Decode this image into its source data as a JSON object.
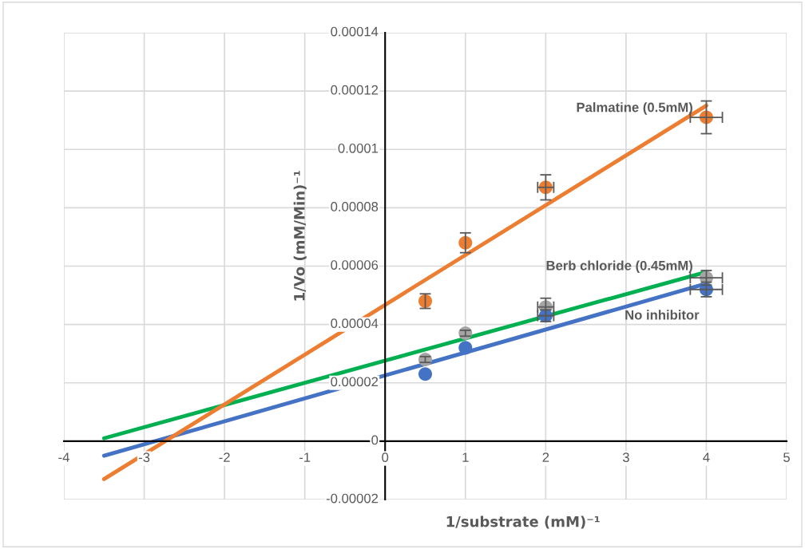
{
  "chart_data": {
    "type": "scatter",
    "xlabel": "1/substrate (mM)⁻¹",
    "ylabel": "1/Vo (mM/Min)⁻¹",
    "xlim": [
      -4,
      5
    ],
    "xticks": [
      -4,
      -3,
      -2,
      -1,
      0,
      1,
      2,
      3,
      4,
      5
    ],
    "ylim": [
      -2e-05,
      0.00014
    ],
    "yticks": [
      {
        "value": -2e-05,
        "label": "-0.00002"
      },
      {
        "value": 0,
        "label": "0"
      },
      {
        "value": 2e-05,
        "label": "0.00002"
      },
      {
        "value": 4e-05,
        "label": "0.00004"
      },
      {
        "value": 6e-05,
        "label": "0.00006"
      },
      {
        "value": 8e-05,
        "label": "0.00008"
      },
      {
        "value": 0.0001,
        "label": "0.0001"
      },
      {
        "value": 0.00012,
        "label": "0.00012"
      },
      {
        "value": 0.00014,
        "label": "0.00014"
      }
    ],
    "grid": true,
    "series": [
      {
        "name": "Palmatine (0.5mM)",
        "marker": "circle",
        "color": "#ed7d31",
        "x": [
          0.5,
          1,
          2,
          4
        ],
        "values": [
          4.8e-05,
          6.8e-05,
          8.7e-05,
          0.000111
        ],
        "errors": [
          2.5e-06,
          3.4e-06,
          4.3e-06,
          5.6e-06
        ],
        "xerrors": [
          null,
          null,
          0.1,
          0.2
        ]
      },
      {
        "name": "Berb chloride (0.45mM)",
        "marker": "circle",
        "color": "#a5a5a5",
        "x": [
          0.5,
          1,
          2,
          4
        ],
        "values": [
          2.8e-05,
          3.7e-05,
          4.6e-05,
          5.6e-05
        ],
        "errors": [
          1e-06,
          1e-06,
          3e-06,
          2.5e-06
        ],
        "xerrors": [
          null,
          null,
          0.1,
          0.2
        ]
      },
      {
        "name": "No inhibitor",
        "marker": "circle",
        "color": "#4472c4",
        "x": [
          0.5,
          1,
          2,
          4
        ],
        "values": [
          2.3e-05,
          3.2e-05,
          4.3e-05,
          5.2e-05
        ],
        "errors": [
          null,
          null,
          2e-06,
          2.5e-06
        ],
        "xerrors": [
          null,
          null,
          0.1,
          0.2
        ]
      },
      {
        "type": "line",
        "color": "#00b050",
        "x": [
          -3.5,
          4
        ],
        "values": [
          1e-06,
          5.8e-05
        ]
      },
      {
        "type": "line",
        "color": "#4472c4",
        "x": [
          -3.5,
          4
        ],
        "values": [
          -5e-06,
          5.4e-05
        ]
      },
      {
        "type": "line",
        "color": "#ed7d31",
        "x": [
          -3.5,
          4
        ],
        "values": [
          -1.3e-05,
          0.000115
        ]
      }
    ]
  }
}
